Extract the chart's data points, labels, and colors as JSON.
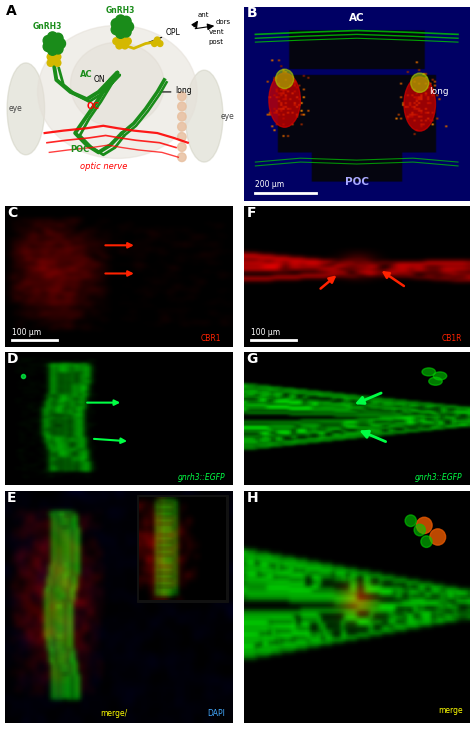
{
  "figure_width": 4.74,
  "figure_height": 7.3,
  "dpi": 100,
  "background": "#ffffff",
  "panels": {
    "A": {
      "label": "A",
      "label_color": "#000000"
    },
    "B": {
      "label": "B",
      "label_color": "#ffffff"
    },
    "C": {
      "label": "C",
      "label_color": "#ffffff"
    },
    "D": {
      "label": "D",
      "label_color": "#ffffff"
    },
    "E": {
      "label": "E",
      "label_color": "#ffffff"
    },
    "F": {
      "label": "F",
      "label_color": "#ffffff"
    },
    "G": {
      "label": "G",
      "label_color": "#ffffff"
    },
    "H": {
      "label": "H",
      "label_color": "#ffffff"
    }
  },
  "panel_A": {
    "gnrh3_color": "#1a8c1a",
    "on_label": "ON",
    "ac_label": "AC",
    "oc_label": "OC",
    "opl_label": "OPL",
    "poc_label": "POC",
    "long_label": "long",
    "eye_label1": "eye",
    "eye_label2": "eye",
    "optic_nerve_label": "optic nerve",
    "optic_nerve_color": "#ff0000",
    "ant_label": "ant",
    "dors_label": "dors",
    "vent_label": "vent",
    "post_label": "post",
    "neuron_body_color": "#d4b800",
    "bg_color": "#f5f0e8"
  },
  "panel_B": {
    "ac_label": "AC",
    "long_label": "long",
    "poc_label": "POC",
    "scale_label": "200 μm",
    "bg_color": "#00008B"
  },
  "panel_C": {
    "scale_label": "100 μm",
    "channel_label": "CBR1",
    "marker_color": "#ff2200"
  },
  "panel_D": {
    "channel_label": "gnrh3::EGFP",
    "marker_color": "#00ff44"
  },
  "panel_E": {
    "label_merge": "merge/",
    "label_dapi": "DAPI",
    "merge_color": "#ffff00",
    "dapi_color": "#44aaff"
  },
  "panel_F": {
    "scale_label": "100 μm",
    "channel_label": "CB1R",
    "marker_color": "#ff2200"
  },
  "panel_G": {
    "channel_label": "gnrh3::EGFP",
    "marker_color": "#00ff44"
  },
  "panel_H": {
    "channel_label": "merge",
    "label_color": "#ffff00"
  },
  "font_sizes": {
    "panel_label": 10,
    "annotation": 6.5,
    "scale_bar": 5.5,
    "channel_label": 5.5,
    "schematic_label": 5.5
  }
}
